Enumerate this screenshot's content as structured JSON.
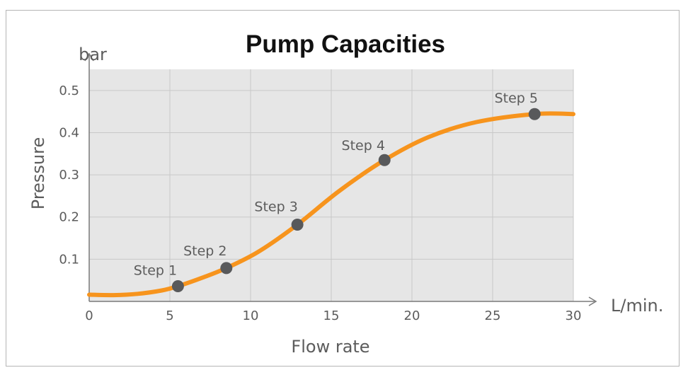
{
  "chart_data": {
    "type": "line",
    "title": "Pump Capacities",
    "xlabel": "Flow rate",
    "ylabel": "Pressure",
    "x_unit": "L/min.",
    "y_unit": "bar",
    "xlim": [
      0,
      30
    ],
    "ylim": [
      0,
      0.55
    ],
    "x_ticks": [
      0,
      5,
      10,
      15,
      20,
      25,
      30
    ],
    "y_ticks": [
      0.1,
      0.2,
      0.3,
      0.4,
      0.5
    ],
    "grid": true,
    "series": [
      {
        "values": [
          {
            "x": 0,
            "y": 0.016
          },
          {
            "x": 1.5,
            "y": 0.015
          },
          {
            "x": 3,
            "y": 0.018
          },
          {
            "x": 4.5,
            "y": 0.026
          },
          {
            "x": 5.5,
            "y": 0.036
          },
          {
            "x": 7,
            "y": 0.056
          },
          {
            "x": 8.5,
            "y": 0.079
          },
          {
            "x": 10.5,
            "y": 0.118
          },
          {
            "x": 12.9,
            "y": 0.182
          },
          {
            "x": 15.5,
            "y": 0.262
          },
          {
            "x": 18.3,
            "y": 0.335
          },
          {
            "x": 21,
            "y": 0.389
          },
          {
            "x": 24,
            "y": 0.425
          },
          {
            "x": 27.6,
            "y": 0.444
          },
          {
            "x": 30,
            "y": 0.444
          }
        ]
      }
    ],
    "points": [
      {
        "label": "Step 1",
        "x": 5.5,
        "y": 0.036
      },
      {
        "label": "Step 2",
        "x": 8.5,
        "y": 0.079
      },
      {
        "label": "Step 3",
        "x": 12.9,
        "y": 0.182
      },
      {
        "label": "Step 4",
        "x": 18.3,
        "y": 0.335
      },
      {
        "label": "Step 5",
        "x": 27.6,
        "y": 0.444
      }
    ],
    "colors": {
      "plot_background": "#e6e6e6",
      "grid": "#c8c8c8",
      "curve": "#f7941d",
      "marker": "#58595b",
      "axis": "#7a7a7a"
    }
  }
}
